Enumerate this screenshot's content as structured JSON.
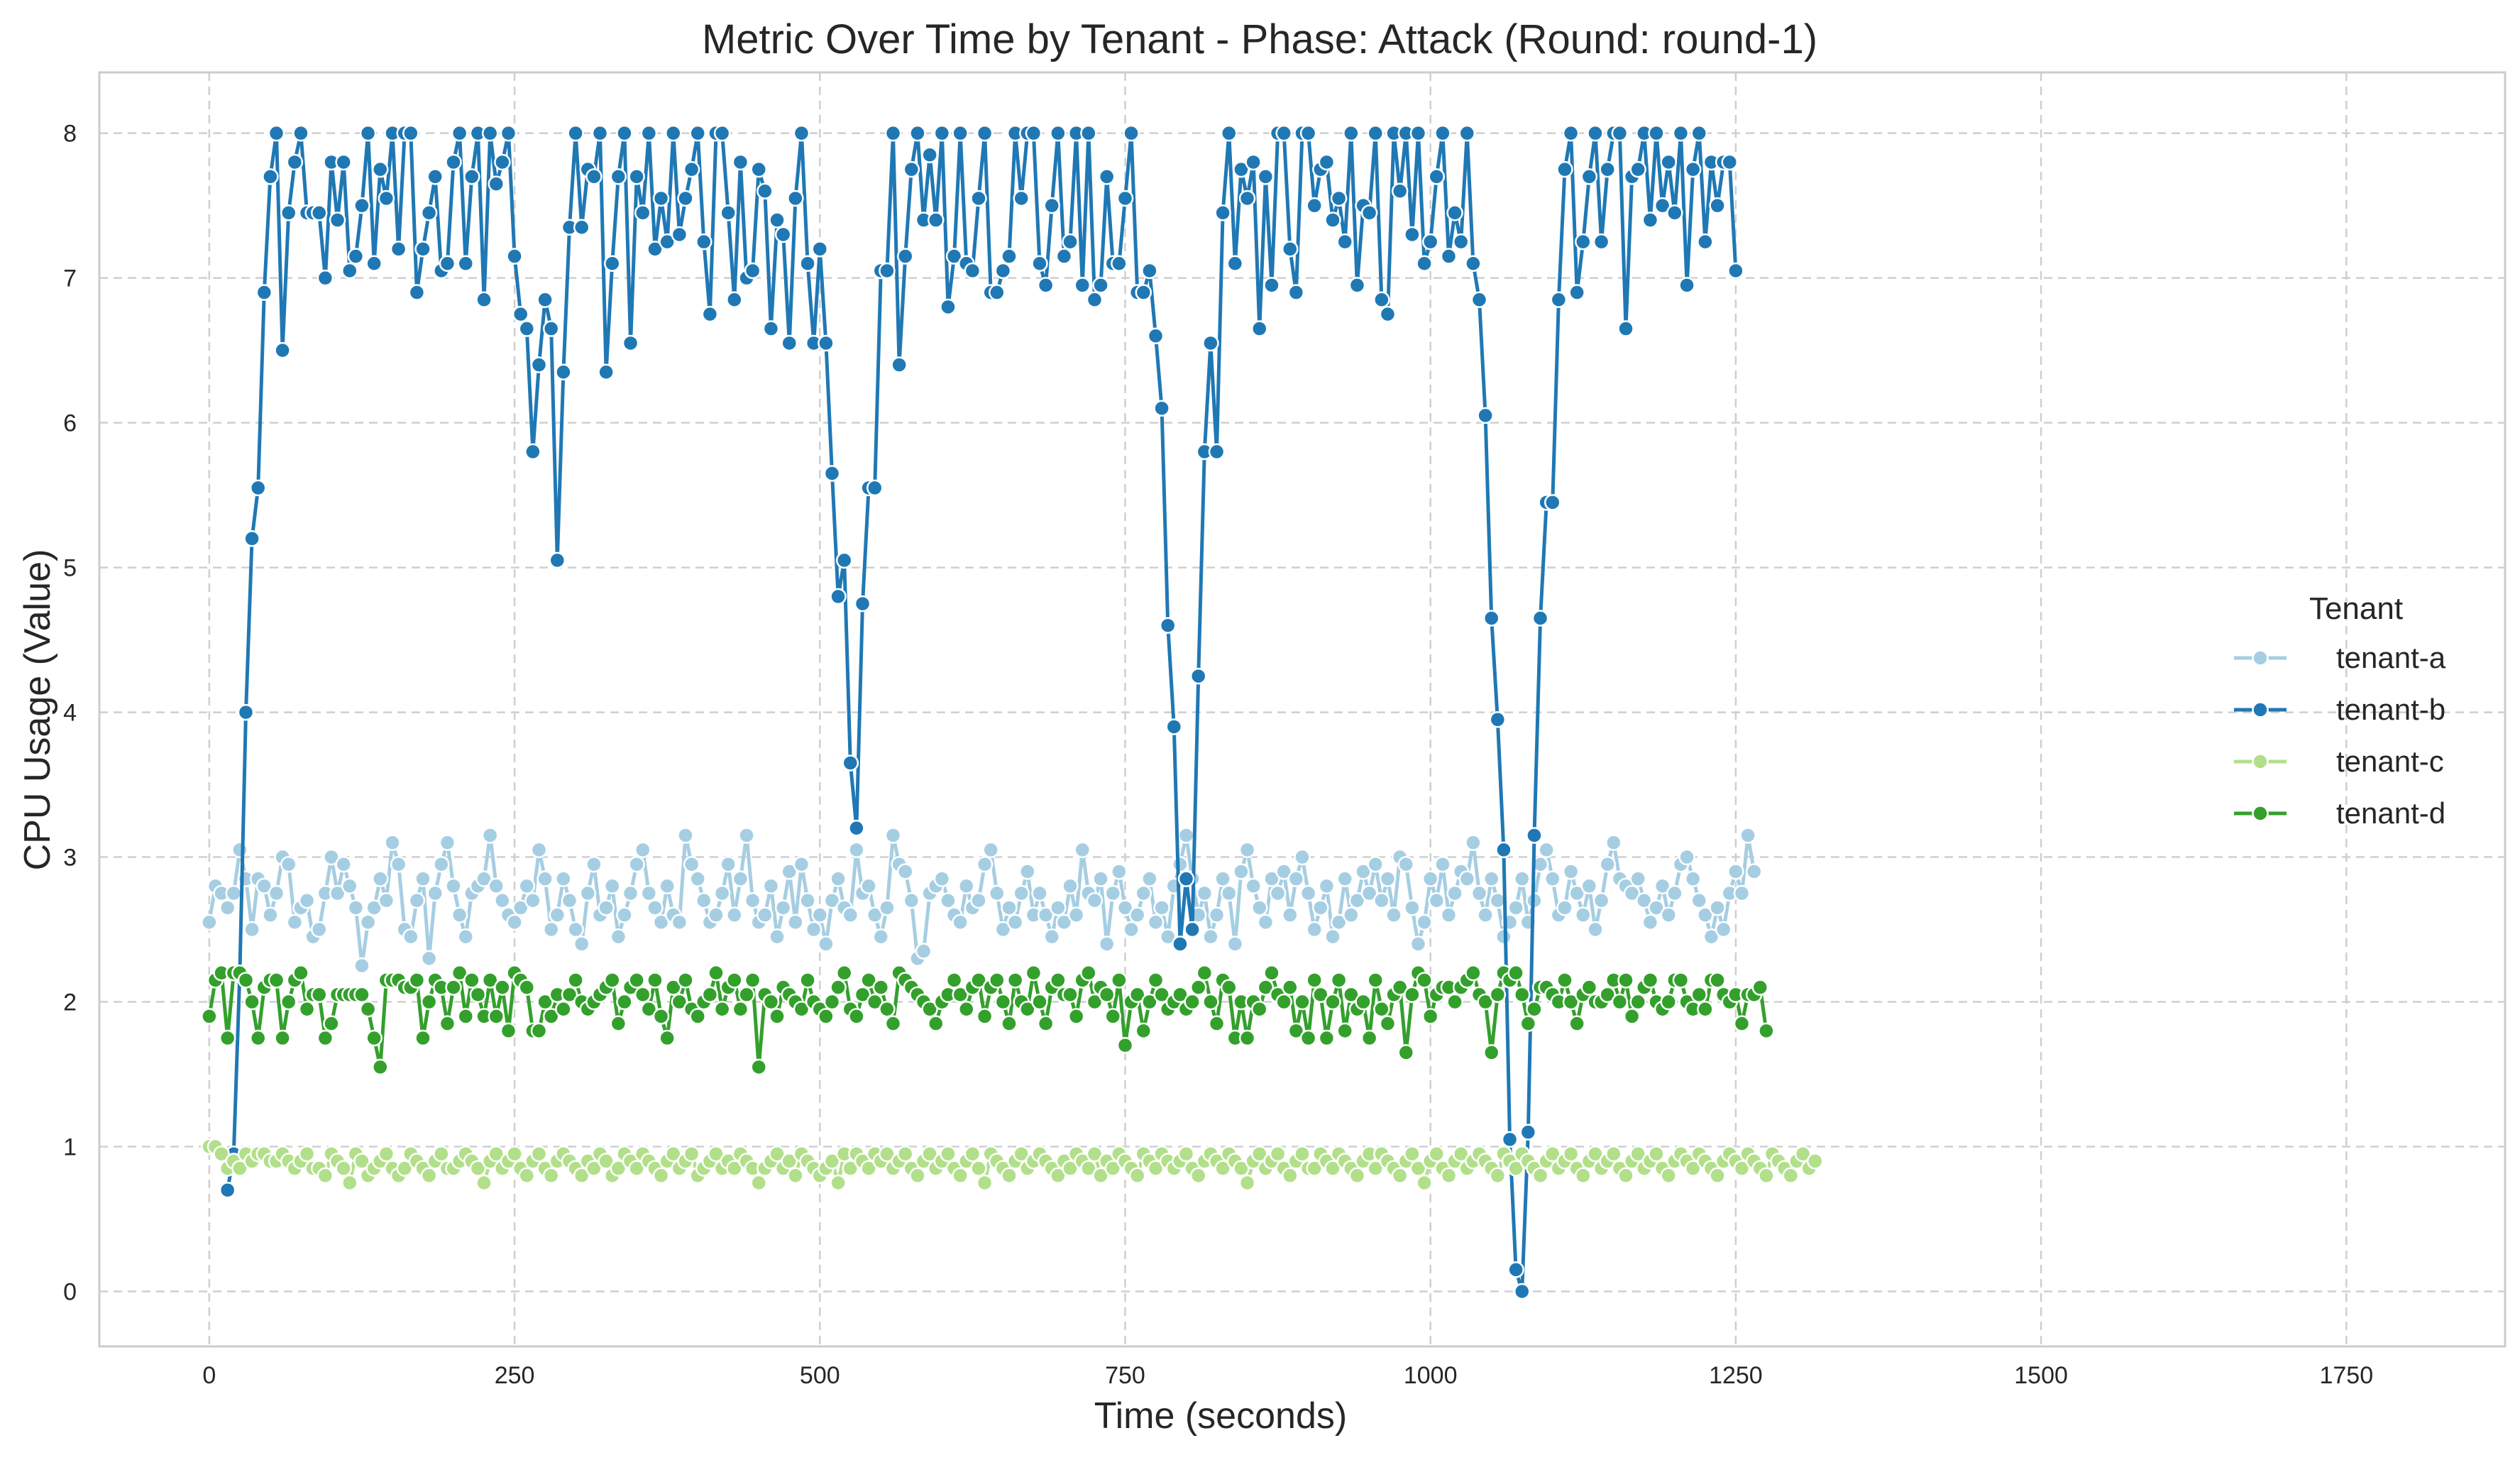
{
  "chart_data": {
    "type": "line",
    "title": "Metric Over Time by Tenant - Phase: Attack (Round: round-1)",
    "xlabel": "Time (seconds)",
    "ylabel": "CPU Usage (Value)",
    "xlim": [
      -90,
      1880
    ],
    "ylim": [
      -0.38,
      8.42
    ],
    "xticks": [
      0,
      250,
      500,
      750,
      1000,
      1250,
      1500,
      1750
    ],
    "yticks": [
      0,
      1,
      2,
      3,
      4,
      5,
      6,
      7,
      8
    ],
    "grid": true,
    "legend": {
      "title": "Tenant",
      "position": "right"
    },
    "x_start": 0,
    "x_step": 5,
    "series": [
      {
        "name": "tenant-a",
        "color": "#a6cee3",
        "values": [
          2.55,
          2.8,
          2.75,
          2.65,
          2.75,
          3.05,
          2.85,
          2.5,
          2.85,
          2.8,
          2.6,
          2.75,
          3.0,
          2.95,
          2.55,
          2.65,
          2.7,
          2.45,
          2.5,
          2.75,
          3.0,
          2.75,
          2.95,
          2.8,
          2.65,
          2.25,
          2.55,
          2.65,
          2.85,
          2.7,
          3.1,
          2.95,
          2.5,
          2.45,
          2.7,
          2.85,
          2.3,
          2.75,
          2.95,
          3.1,
          2.8,
          2.6,
          2.45,
          2.75,
          2.8,
          2.85,
          3.15,
          2.8,
          2.7,
          2.6,
          2.55,
          2.65,
          2.8,
          2.7,
          3.05,
          2.85,
          2.5,
          2.6,
          2.85,
          2.7,
          2.5,
          2.4,
          2.75,
          2.95,
          2.6,
          2.65,
          2.8,
          2.45,
          2.6,
          2.75,
          2.95,
          3.05,
          2.75,
          2.65,
          2.55,
          2.8,
          2.6,
          2.55,
          3.15,
          2.95,
          2.85,
          2.7,
          2.55,
          2.6,
          2.75,
          2.95,
          2.6,
          2.85,
          3.15,
          2.7,
          2.55,
          2.6,
          2.8,
          2.45,
          2.65,
          2.9,
          2.55,
          2.95,
          2.7,
          2.5,
          2.6,
          2.4,
          2.7,
          2.85,
          2.65,
          2.6,
          3.05,
          2.75,
          2.8,
          2.6,
          2.45,
          2.65,
          3.15,
          2.95,
          2.9,
          2.7,
          2.3,
          2.35,
          2.75,
          2.8,
          2.85,
          2.7,
          2.6,
          2.55,
          2.8,
          2.65,
          2.7,
          2.95,
          3.05,
          2.75,
          2.5,
          2.65,
          2.55,
          2.75,
          2.9,
          2.6,
          2.75,
          2.6,
          2.45,
          2.65,
          2.55,
          2.8,
          2.6,
          3.05,
          2.75,
          2.7,
          2.85,
          2.4,
          2.75,
          2.9,
          2.65,
          2.5,
          2.6,
          2.75,
          2.85,
          2.55,
          2.65,
          2.45,
          2.8,
          2.95,
          3.15,
          2.85,
          2.6,
          2.75,
          2.45,
          2.6,
          2.85,
          2.75,
          2.4,
          2.9,
          3.05,
          2.8,
          2.65,
          2.55,
          2.85,
          2.75,
          2.9,
          2.6,
          2.85,
          3.0,
          2.75,
          2.5,
          2.65,
          2.8,
          2.45,
          2.55,
          2.85,
          2.6,
          2.7,
          2.9,
          2.75,
          2.95,
          2.7,
          2.85,
          2.6,
          3.0,
          2.95,
          2.65,
          2.4,
          2.55,
          2.85,
          2.7,
          2.95,
          2.6,
          2.75,
          2.9,
          2.85,
          3.1,
          2.75,
          2.6,
          2.85,
          2.7,
          2.45,
          2.55,
          2.65,
          2.85,
          2.55,
          2.7,
          2.95,
          3.05,
          2.85,
          2.6,
          2.65,
          2.9,
          2.75,
          2.6,
          2.8,
          2.5,
          2.7,
          2.95,
          3.1,
          2.85,
          2.8,
          2.75,
          2.85,
          2.7,
          2.55,
          2.65,
          2.8,
          2.6,
          2.75,
          2.95,
          3.0,
          2.85,
          2.7,
          2.6,
          2.45,
          2.65,
          2.5,
          2.75,
          2.9,
          2.75,
          3.15,
          2.9
        ],
        "label_note": ""
      },
      {
        "name": "tenant-b",
        "color": "#1f78b4",
        "values": [
          null,
          null,
          null,
          0.7,
          0.95,
          2.2,
          4.0,
          5.2,
          5.55,
          6.9,
          7.7,
          8.0,
          6.5,
          7.45,
          7.8,
          8.0,
          7.45,
          7.45,
          7.45,
          7.0,
          7.8,
          7.4,
          7.8,
          7.05,
          7.15,
          7.5,
          8.0,
          7.1,
          7.75,
          7.55,
          8.0,
          7.2,
          8.0,
          8.0,
          6.9,
          7.2,
          7.45,
          7.7,
          7.05,
          7.1,
          7.8,
          8.0,
          7.1,
          7.7,
          8.0,
          6.85,
          8.0,
          7.65,
          7.8,
          8.0,
          7.15,
          6.75,
          6.65,
          5.8,
          6.4,
          6.85,
          6.65,
          5.05,
          6.35,
          7.35,
          8.0,
          7.35,
          7.75,
          7.7,
          8.0,
          6.35,
          7.1,
          7.7,
          8.0,
          6.55,
          7.7,
          7.45,
          8.0,
          7.2,
          7.55,
          7.25,
          8.0,
          7.3,
          7.55,
          7.75,
          8.0,
          7.25,
          6.75,
          8.0,
          8.0,
          7.45,
          6.85,
          7.8,
          7.0,
          7.05,
          7.75,
          7.6,
          6.65,
          7.4,
          7.3,
          6.55,
          7.55,
          8.0,
          7.1,
          6.55,
          7.2,
          6.55,
          5.65,
          4.8,
          5.05,
          3.65,
          3.2,
          4.75,
          5.55,
          5.55,
          7.05,
          7.05,
          8.0,
          6.4,
          7.15,
          7.75,
          8.0,
          7.4,
          7.85,
          7.4,
          8.0,
          6.8,
          7.15,
          8.0,
          7.1,
          7.05,
          7.55,
          8.0,
          6.9,
          6.9,
          7.05,
          7.15,
          8.0,
          7.55,
          8.0,
          8.0,
          7.1,
          6.95,
          7.5,
          8.0,
          7.15,
          7.25,
          8.0,
          6.95,
          8.0,
          6.85,
          6.95,
          7.7,
          7.1,
          7.1,
          7.55,
          8.0,
          6.9,
          6.9,
          7.05,
          6.6,
          6.1,
          4.6,
          3.9,
          2.4,
          2.85,
          2.5,
          4.25,
          5.8,
          6.55,
          5.8,
          7.45,
          8.0,
          7.1,
          7.75,
          7.55,
          7.8,
          6.65,
          7.7,
          6.95,
          8.0,
          8.0,
          7.2,
          6.9,
          8.0,
          8.0,
          7.5,
          7.75,
          7.8,
          7.4,
          7.55,
          7.25,
          8.0,
          6.95,
          7.5,
          7.45,
          8.0,
          6.85,
          6.75,
          8.0,
          7.6,
          8.0,
          7.3,
          8.0,
          7.1,
          7.25,
          7.7,
          8.0,
          7.15,
          7.45,
          7.25,
          8.0,
          7.1,
          6.85,
          6.05,
          4.65,
          3.95,
          3.05,
          1.05,
          0.15,
          0.0,
          1.1,
          3.15,
          4.65,
          5.45,
          5.45,
          6.85,
          7.75,
          8.0,
          6.9,
          7.25,
          7.7,
          8.0,
          7.25,
          7.75,
          8.0,
          8.0,
          6.65,
          7.7,
          7.75,
          8.0,
          7.4,
          8.0,
          7.5,
          7.8,
          7.45,
          8.0,
          6.95,
          7.75,
          8.0,
          7.25,
          7.8,
          7.5,
          7.8,
          7.8,
          7.05
        ]
      },
      {
        "name": "tenant-c",
        "color": "#b2df8a",
        "values": [
          1.0,
          1.0,
          0.95,
          0.85,
          0.9,
          0.85,
          0.95,
          0.9,
          0.95,
          0.95,
          0.9,
          0.9,
          0.95,
          0.9,
          0.85,
          0.9,
          0.95,
          0.85,
          0.85,
          0.8,
          0.95,
          0.9,
          0.85,
          0.75,
          0.95,
          0.9,
          0.8,
          0.85,
          0.9,
          0.95,
          0.85,
          0.8,
          0.85,
          0.95,
          0.9,
          0.85,
          0.8,
          0.9,
          0.95,
          0.85,
          0.85,
          0.9,
          0.95,
          0.9,
          0.85,
          0.75,
          0.9,
          0.95,
          0.85,
          0.9,
          0.95,
          0.85,
          0.8,
          0.9,
          0.95,
          0.85,
          0.8,
          0.9,
          0.95,
          0.9,
          0.85,
          0.8,
          0.9,
          0.85,
          0.95,
          0.9,
          0.8,
          0.85,
          0.95,
          0.9,
          0.85,
          0.95,
          0.9,
          0.85,
          0.8,
          0.9,
          0.95,
          0.85,
          0.9,
          0.95,
          0.8,
          0.85,
          0.9,
          0.95,
          0.85,
          0.9,
          0.85,
          0.95,
          0.9,
          0.85,
          0.75,
          0.85,
          0.9,
          0.95,
          0.85,
          0.9,
          0.8,
          0.95,
          0.9,
          0.85,
          0.8,
          0.85,
          0.9,
          0.75,
          0.95,
          0.85,
          0.95,
          0.9,
          0.85,
          0.95,
          0.9,
          0.95,
          0.85,
          0.9,
          0.95,
          0.85,
          0.8,
          0.9,
          0.95,
          0.85,
          0.9,
          0.95,
          0.85,
          0.8,
          0.9,
          0.95,
          0.85,
          0.75,
          0.95,
          0.9,
          0.85,
          0.8,
          0.9,
          0.95,
          0.85,
          0.9,
          0.95,
          0.9,
          0.85,
          0.8,
          0.9,
          0.85,
          0.95,
          0.9,
          0.85,
          0.95,
          0.8,
          0.9,
          0.85,
          0.95,
          0.9,
          0.85,
          0.8,
          0.95,
          0.9,
          0.85,
          0.95,
          0.9,
          0.85,
          0.9,
          0.95,
          0.85,
          0.8,
          0.9,
          0.95,
          0.9,
          0.85,
          0.95,
          0.9,
          0.85,
          0.75,
          0.9,
          0.95,
          0.85,
          0.9,
          0.95,
          0.85,
          0.8,
          0.9,
          0.95,
          0.85,
          0.85,
          0.95,
          0.9,
          0.85,
          0.95,
          0.9,
          0.85,
          0.8,
          0.9,
          0.95,
          0.85,
          0.95,
          0.9,
          0.85,
          0.8,
          0.9,
          0.95,
          0.85,
          0.75,
          0.9,
          0.95,
          0.85,
          0.8,
          0.9,
          0.95,
          0.85,
          0.9,
          0.95,
          0.9,
          0.85,
          0.8,
          0.95,
          0.9,
          0.85,
          0.95,
          0.9,
          0.85,
          0.8,
          0.9,
          0.95,
          0.85,
          0.9,
          0.95,
          0.85,
          0.8,
          0.9,
          0.95,
          0.85,
          0.9,
          0.95,
          0.85,
          0.8,
          0.9,
          0.95,
          0.85,
          0.9,
          0.95,
          0.85,
          0.8,
          0.9,
          0.95,
          0.9,
          0.85,
          0.95,
          0.9,
          0.85,
          0.8,
          0.9,
          0.95,
          0.9,
          0.85,
          0.95,
          0.9,
          0.85,
          0.8,
          0.95,
          0.9,
          0.85,
          0.8,
          0.9,
          0.95,
          0.85,
          0.9
        ]
      },
      {
        "name": "tenant-d",
        "color": "#33a02c",
        "values": [
          1.9,
          2.15,
          2.2,
          1.75,
          2.2,
          2.2,
          2.15,
          2.0,
          1.75,
          2.1,
          2.15,
          2.15,
          1.75,
          2.0,
          2.15,
          2.2,
          1.95,
          2.05,
          2.05,
          1.75,
          1.85,
          2.05,
          2.05,
          2.05,
          2.05,
          2.05,
          1.95,
          1.75,
          1.55,
          2.15,
          2.15,
          2.15,
          2.1,
          2.1,
          2.15,
          1.75,
          2.0,
          2.15,
          2.1,
          1.85,
          2.1,
          2.2,
          1.9,
          2.15,
          2.05,
          1.9,
          2.15,
          1.9,
          2.1,
          1.8,
          2.2,
          2.15,
          2.1,
          1.8,
          1.8,
          2.0,
          1.9,
          2.05,
          1.95,
          2.05,
          2.15,
          2.0,
          1.95,
          2.0,
          2.05,
          2.1,
          2.15,
          1.85,
          2.0,
          2.1,
          2.15,
          2.05,
          1.95,
          2.15,
          1.9,
          1.75,
          2.1,
          2.0,
          2.15,
          1.95,
          1.9,
          2.0,
          2.05,
          2.2,
          1.95,
          2.1,
          2.15,
          1.95,
          2.05,
          2.15,
          1.55,
          2.05,
          2.0,
          1.9,
          2.1,
          2.05,
          2.0,
          1.95,
          2.15,
          2.0,
          1.95,
          1.9,
          2.0,
          2.1,
          2.2,
          1.95,
          1.9,
          2.05,
          2.15,
          2.0,
          2.1,
          1.95,
          1.85,
          2.2,
          2.15,
          2.1,
          2.05,
          2.0,
          1.95,
          1.85,
          2.0,
          2.05,
          2.15,
          2.05,
          1.95,
          2.1,
          2.15,
          1.9,
          2.1,
          2.15,
          2.0,
          1.85,
          2.15,
          2.0,
          1.95,
          2.2,
          2.0,
          1.85,
          2.1,
          2.15,
          2.05,
          2.05,
          1.9,
          2.15,
          2.2,
          2.0,
          2.1,
          2.05,
          1.9,
          2.15,
          1.7,
          2.0,
          2.05,
          1.8,
          2.0,
          2.15,
          2.05,
          1.95,
          2.0,
          2.05,
          1.95,
          2.0,
          2.1,
          2.2,
          2.0,
          1.85,
          2.15,
          2.1,
          1.75,
          2.0,
          1.75,
          2.0,
          1.95,
          2.1,
          2.2,
          2.05,
          2.0,
          2.1,
          1.8,
          2.0,
          1.75,
          2.15,
          2.05,
          1.75,
          2.0,
          2.15,
          1.8,
          2.05,
          1.95,
          2.0,
          1.75,
          2.15,
          1.95,
          1.85,
          2.05,
          2.1,
          1.65,
          2.05,
          2.2,
          2.15,
          1.9,
          2.05,
          2.1,
          2.1,
          2.0,
          2.1,
          2.15,
          2.2,
          2.05,
          2.0,
          1.65,
          2.05,
          2.2,
          2.15,
          2.2,
          2.05,
          1.85,
          1.95,
          2.1,
          2.1,
          2.05,
          2.0,
          2.15,
          2.0,
          1.85,
          2.05,
          2.1,
          2.0,
          2.0,
          2.05,
          2.15,
          2.0,
          2.15,
          1.9,
          2.0,
          2.1,
          2.15,
          2.0,
          1.95,
          2.0,
          2.15,
          2.15,
          2.0,
          1.95,
          2.05,
          1.95,
          2.15,
          2.15,
          2.05,
          2.0,
          2.05,
          1.85,
          2.05,
          2.05,
          2.1,
          1.8
        ]
      }
    ]
  }
}
